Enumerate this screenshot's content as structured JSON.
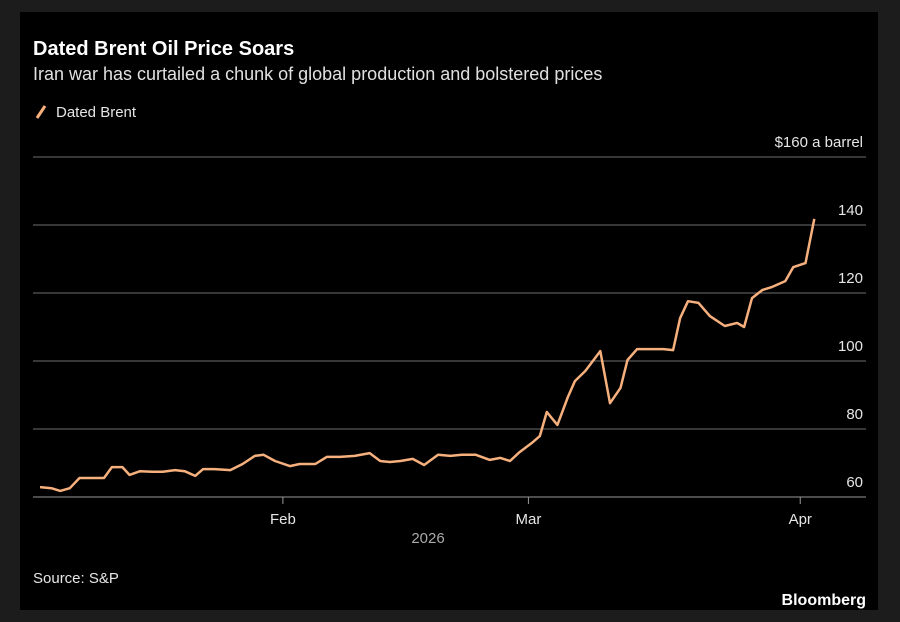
{
  "chart_data": {
    "type": "line",
    "title": "Dated Brent Oil Price Soars",
    "subtitle": "Iran war has curtailed a chunk of global production and bolstered prices",
    "source": "Source: S&P",
    "brand": "Bloomberg",
    "xlabel": "2026",
    "x": [
      4.3,
      5.6,
      6.6,
      7.7,
      8.8,
      10.2,
      11.6,
      12.5,
      13.7,
      14.5,
      15.7,
      17.1,
      18.3,
      19.7,
      20.8,
      22.0,
      22.9,
      24.2,
      26.0,
      27.4,
      28.8,
      29.8,
      31.1,
      32.8,
      33.9,
      35.7,
      37.0,
      38.5,
      40.2,
      41.9,
      43.1,
      44.2,
      45.4,
      46.8,
      48.1,
      49.7,
      51.1,
      52.4,
      54.0,
      55.6,
      56.8,
      57.9,
      59.0,
      60.4,
      61.3,
      62.1,
      63.3,
      64.5,
      65.3,
      66.5,
      68.2,
      69.3,
      70.5,
      71.3,
      72.4,
      73.9,
      75.4,
      76.5,
      77.3,
      78.2,
      79.4,
      80.7,
      82.4,
      83.8,
      84.6,
      85.5,
      86.7,
      87.8,
      89.3,
      90.2,
      91.6,
      92.6
    ],
    "series": [
      {
        "name": "Dated Brent",
        "color": "#f6b07d",
        "values": [
          62.9,
          62.6,
          61.8,
          62.6,
          65.6,
          65.6,
          65.6,
          68.8,
          68.8,
          66.5,
          67.6,
          67.4,
          67.4,
          67.9,
          67.6,
          66.2,
          68.2,
          68.2,
          67.9,
          69.7,
          72.1,
          72.4,
          70.6,
          69.1,
          69.7,
          69.7,
          71.8,
          71.8,
          72.1,
          72.9,
          70.6,
          70.3,
          70.6,
          71.2,
          69.4,
          72.4,
          72.1,
          72.4,
          72.4,
          70.9,
          71.5,
          70.6,
          73.2,
          75.9,
          77.9,
          85.0,
          81.2,
          89.4,
          94.1,
          97.1,
          102.9,
          87.6,
          92.1,
          100.3,
          103.5,
          103.5,
          103.5,
          103.2,
          112.6,
          117.6,
          117.1,
          113.2,
          110.3,
          111.2,
          110.0,
          118.5,
          120.9,
          121.8,
          123.5,
          127.6,
          128.8,
          141.8
        ]
      }
    ],
    "xlim": [
      3.5,
      98.5
    ],
    "xticks": [
      {
        "value": 32,
        "label": "Feb"
      },
      {
        "value": 60,
        "label": "Mar"
      },
      {
        "value": 91,
        "label": "Apr"
      }
    ],
    "ylim": [
      60,
      160
    ],
    "yticks": [
      60,
      80,
      100,
      120,
      140,
      {
        "value": 160,
        "label": "$160 a barrel"
      }
    ],
    "grid": true
  }
}
